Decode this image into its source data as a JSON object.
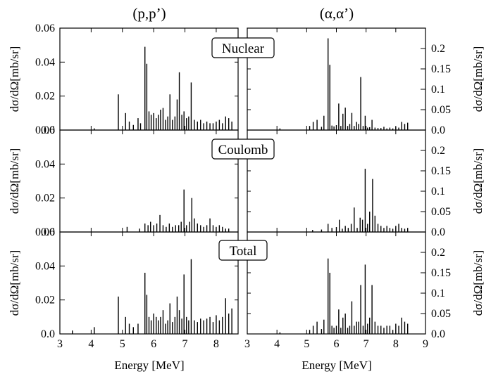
{
  "chart_data": {
    "type": "bar",
    "x_label": "Energy [MeV]",
    "y_label": "dσ/dΩ[mb/sr]",
    "columns": [
      {
        "title": "(p,p’)",
        "xlim": [
          3,
          8.7
        ],
        "x_ticks": [
          3,
          4,
          5,
          6,
          7,
          8
        ],
        "ylim": [
          0,
          0.06
        ],
        "y_ticks": [
          "0.0",
          "0.02",
          "0.04",
          "0.06"
        ],
        "y_axis_side": "left"
      },
      {
        "title": "(α,α’)",
        "xlim": [
          3,
          9
        ],
        "x_ticks": [
          3,
          4,
          5,
          6,
          7,
          8,
          9
        ],
        "ylim": [
          0,
          0.25
        ],
        "y_ticks": [
          "0.0",
          "0.05",
          "0.1",
          "0.15",
          "0.2"
        ],
        "y_axis_side": "right"
      }
    ],
    "rows": [
      "Nuclear",
      "Coulomb",
      "Total"
    ],
    "panels": {
      "p_nuclear": {
        "energies": [
          4.1,
          4.87,
          5.1,
          5.22,
          5.35,
          5.5,
          5.58,
          5.72,
          5.78,
          5.85,
          5.92,
          6.0,
          6.08,
          6.15,
          6.22,
          6.3,
          6.38,
          6.45,
          6.52,
          6.6,
          6.68,
          6.75,
          6.82,
          6.9,
          6.97,
          7.05,
          7.12,
          7.2,
          7.3,
          7.4,
          7.5,
          7.6,
          7.7,
          7.8,
          7.9,
          8.0,
          8.1,
          8.2,
          8.3,
          8.4,
          8.5
        ],
        "values": [
          0.001,
          0.021,
          0.01,
          0.005,
          0.003,
          0.007,
          0.004,
          0.049,
          0.039,
          0.011,
          0.009,
          0.01,
          0.007,
          0.009,
          0.012,
          0.013,
          0.006,
          0.008,
          0.021,
          0.006,
          0.008,
          0.018,
          0.034,
          0.009,
          0.011,
          0.007,
          0.008,
          0.028,
          0.006,
          0.005,
          0.006,
          0.004,
          0.005,
          0.004,
          0.004,
          0.005,
          0.006,
          0.004,
          0.008,
          0.007,
          0.005
        ]
      },
      "p_coulomb": {
        "energies": [
          5.15,
          5.55,
          5.72,
          5.82,
          5.9,
          6.0,
          6.1,
          6.2,
          6.3,
          6.4,
          6.5,
          6.6,
          6.7,
          6.8,
          6.88,
          6.97,
          7.05,
          7.15,
          7.22,
          7.3,
          7.4,
          7.5,
          7.6,
          7.7,
          7.8,
          7.9,
          8.0,
          8.1,
          8.2,
          8.3,
          8.4
        ],
        "values": [
          0.003,
          0.002,
          0.005,
          0.004,
          0.006,
          0.004,
          0.005,
          0.01,
          0.004,
          0.003,
          0.005,
          0.003,
          0.004,
          0.004,
          0.006,
          0.025,
          0.004,
          0.006,
          0.02,
          0.008,
          0.005,
          0.004,
          0.003,
          0.004,
          0.008,
          0.004,
          0.003,
          0.004,
          0.003,
          0.002,
          0.002
        ]
      },
      "p_total": {
        "energies": [
          3.4,
          4.1,
          4.87,
          5.1,
          5.22,
          5.35,
          5.5,
          5.72,
          5.78,
          5.85,
          5.92,
          6.0,
          6.08,
          6.15,
          6.22,
          6.3,
          6.38,
          6.45,
          6.52,
          6.6,
          6.68,
          6.75,
          6.82,
          6.9,
          6.97,
          7.05,
          7.12,
          7.2,
          7.3,
          7.4,
          7.5,
          7.6,
          7.7,
          7.8,
          7.9,
          8.0,
          8.1,
          8.2,
          8.3,
          8.4,
          8.5
        ],
        "values": [
          0.002,
          0.004,
          0.022,
          0.01,
          0.006,
          0.004,
          0.006,
          0.036,
          0.023,
          0.01,
          0.008,
          0.012,
          0.01,
          0.008,
          0.01,
          0.014,
          0.006,
          0.008,
          0.018,
          0.007,
          0.01,
          0.022,
          0.014,
          0.009,
          0.035,
          0.01,
          0.008,
          0.044,
          0.008,
          0.007,
          0.009,
          0.008,
          0.009,
          0.01,
          0.007,
          0.011,
          0.008,
          0.01,
          0.021,
          0.012,
          0.015
        ]
      },
      "a_nuclear": {
        "energies": [
          4.1,
          5.1,
          5.22,
          5.35,
          5.5,
          5.58,
          5.72,
          5.78,
          5.85,
          5.92,
          6.0,
          6.08,
          6.15,
          6.22,
          6.3,
          6.38,
          6.45,
          6.52,
          6.6,
          6.68,
          6.75,
          6.82,
          6.9,
          6.97,
          7.05,
          7.12,
          7.2,
          7.3,
          7.4,
          7.5,
          7.6,
          7.7,
          7.8,
          7.9,
          8.0,
          8.1,
          8.2,
          8.3,
          8.4
        ],
        "values": [
          0.004,
          0.01,
          0.02,
          0.025,
          0.008,
          0.035,
          0.225,
          0.16,
          0.011,
          0.009,
          0.012,
          0.065,
          0.01,
          0.04,
          0.055,
          0.01,
          0.015,
          0.042,
          0.01,
          0.02,
          0.015,
          0.13,
          0.01,
          0.035,
          0.006,
          0.007,
          0.025,
          0.006,
          0.005,
          0.005,
          0.008,
          0.004,
          0.006,
          0.004,
          0.008,
          0.006,
          0.02,
          0.015,
          0.018
        ]
      },
      "a_coulomb": {
        "energies": [
          5.2,
          5.5,
          5.72,
          5.85,
          6.0,
          6.1,
          6.2,
          6.3,
          6.4,
          6.5,
          6.6,
          6.7,
          6.8,
          6.88,
          6.97,
          7.05,
          7.12,
          7.22,
          7.3,
          7.4,
          7.5,
          7.6,
          7.7,
          7.8,
          7.9,
          8.0,
          8.1,
          8.2,
          8.3,
          8.4
        ],
        "values": [
          0.005,
          0.006,
          0.02,
          0.01,
          0.012,
          0.03,
          0.008,
          0.015,
          0.01,
          0.02,
          0.06,
          0.01,
          0.035,
          0.03,
          0.155,
          0.02,
          0.05,
          0.13,
          0.04,
          0.02,
          0.015,
          0.01,
          0.015,
          0.01,
          0.008,
          0.015,
          0.02,
          0.01,
          0.008,
          0.01
        ]
      },
      "a_total": {
        "energies": [
          4.1,
          5.1,
          5.22,
          5.35,
          5.5,
          5.58,
          5.72,
          5.78,
          5.85,
          5.92,
          6.0,
          6.08,
          6.15,
          6.22,
          6.3,
          6.38,
          6.45,
          6.52,
          6.6,
          6.68,
          6.75,
          6.82,
          6.9,
          6.97,
          7.05,
          7.12,
          7.2,
          7.3,
          7.4,
          7.5,
          7.6,
          7.7,
          7.8,
          7.9,
          8.0,
          8.1,
          8.2,
          8.3,
          8.4
        ],
        "values": [
          0.004,
          0.01,
          0.02,
          0.03,
          0.012,
          0.035,
          0.185,
          0.15,
          0.02,
          0.015,
          0.02,
          0.06,
          0.015,
          0.04,
          0.05,
          0.015,
          0.02,
          0.08,
          0.02,
          0.03,
          0.03,
          0.12,
          0.02,
          0.17,
          0.025,
          0.04,
          0.12,
          0.03,
          0.02,
          0.02,
          0.015,
          0.02,
          0.02,
          0.01,
          0.025,
          0.02,
          0.04,
          0.03,
          0.025
        ]
      }
    }
  }
}
